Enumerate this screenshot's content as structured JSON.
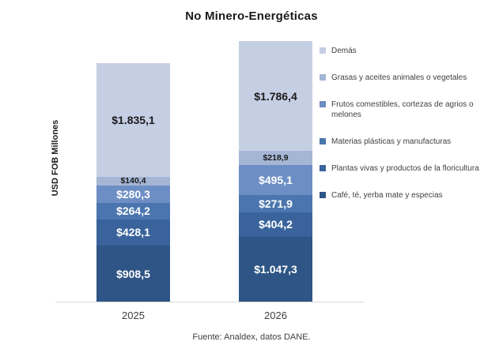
{
  "title": "No Minero-Energéticas",
  "ylabel": "USD FOB Millones",
  "source": "Fuente: Analdex, datos DANE.",
  "chart_data": {
    "type": "bar",
    "stacked": true,
    "title": "No Minero-Energéticas",
    "xlabel": "",
    "ylabel": "USD FOB Millones",
    "categories": [
      "2025",
      "2026"
    ],
    "totals": [
      3856.6,
      4223.8
    ],
    "series": [
      {
        "name": "Café, té, yerba mate y especias",
        "color": "#2e5585",
        "label_color": "#ffffff",
        "values": [
          908.5,
          1047.3
        ],
        "labels": [
          "$908,5",
          "$1.047,3"
        ]
      },
      {
        "name": "Plantas vivas y productos de la floricultura",
        "color": "#3a639c",
        "label_color": "#ffffff",
        "values": [
          428.1,
          404.2
        ],
        "labels": [
          "$428,1",
          "$404,2"
        ]
      },
      {
        "name": "Materias plásticas y manufacturas",
        "color": "#4a75ae",
        "label_color": "#ffffff",
        "values": [
          264.2,
          271.9
        ],
        "labels": [
          "$264,2",
          "$271,9"
        ]
      },
      {
        "name": "Frutos comestibles, cortezas de agrios o melones",
        "color": "#6d8ec4",
        "label_color": "#ffffff",
        "values": [
          280.3,
          495.1
        ],
        "labels": [
          "$280,3",
          "$495,1"
        ]
      },
      {
        "name": "Grasas y aceites animales o vegetales",
        "color": "#a5b6d5",
        "label_color": "#1a1a1a",
        "values": [
          140.4,
          218.9
        ],
        "labels": [
          "$140,4",
          "$218,9"
        ]
      },
      {
        "name": "Demás",
        "color": "#c5cfe4",
        "label_color": "#1a1a1a",
        "values": [
          1835.1,
          1786.4
        ],
        "labels": [
          "$1.835,1",
          "$1.786,4"
        ]
      }
    ],
    "legend": {
      "position": "right",
      "items": [
        {
          "label": "Demás",
          "color": "#c5cfe4"
        },
        {
          "label": "Grasas y aceites animales o vegetales",
          "color": "#a5b6d5"
        },
        {
          "label": "Frutos comestibles, cortezas de agrios o melones",
          "color": "#6d8ec4"
        },
        {
          "label": "Materias plásticas y manufacturas",
          "color": "#4a75ae"
        },
        {
          "label": "Plantas vivas y productos de la floricultura",
          "color": "#3a639c"
        },
        {
          "label": "Café, té, yerba mate y especias",
          "color": "#2e5585"
        }
      ]
    },
    "grid": false,
    "axis_line_color": "#d9d9d9"
  }
}
